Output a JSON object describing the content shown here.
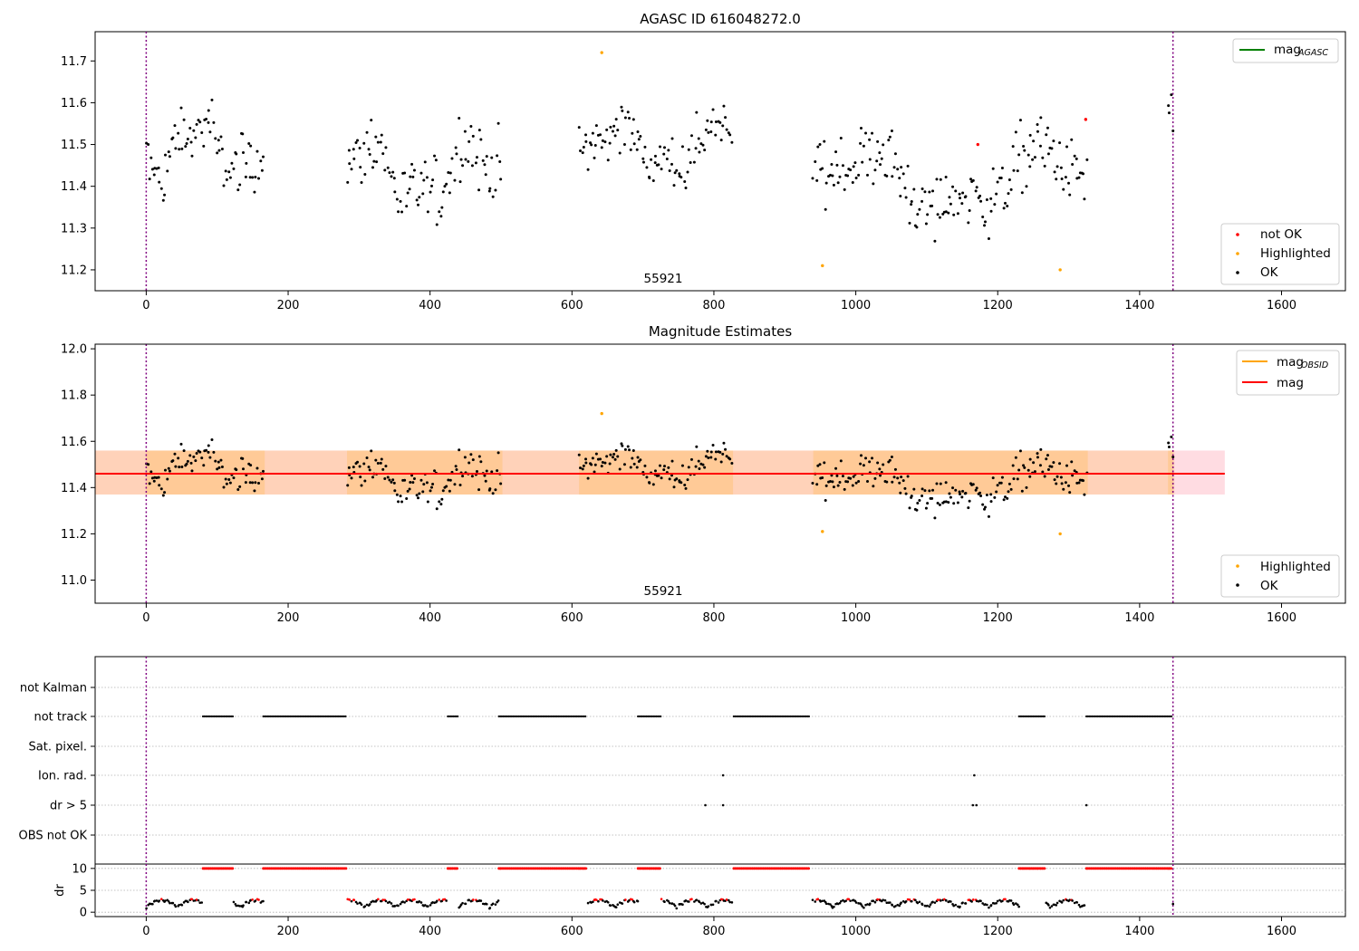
{
  "chart_data": [
    {
      "type": "scatter",
      "title": "AGASC ID 616048272.0",
      "xlim": [
        -72,
        1690
      ],
      "ylim": [
        11.15,
        11.77
      ],
      "xticks": [
        0,
        200,
        400,
        600,
        800,
        1000,
        1200,
        1400,
        1600
      ],
      "yticks": [
        11.2,
        11.3,
        11.4,
        11.5,
        11.6,
        11.7
      ],
      "obsid_label": "55921",
      "vlines": [
        0,
        1447
      ],
      "legend_upper": {
        "position": "top-right",
        "entries": [
          {
            "label": "mag",
            "sub": "AGASC",
            "color": "#008000"
          }
        ]
      },
      "legend_lower": {
        "position": "bottom-right",
        "entries": [
          {
            "label": "not OK",
            "color": "#ff0000"
          },
          {
            "label": "Highlighted",
            "color": "#ffa500"
          },
          {
            "label": "OK",
            "color": "#000000"
          }
        ]
      },
      "segments": [
        {
          "start": 0,
          "end": 165,
          "center": 11.49,
          "spread": 0.07
        },
        {
          "start": 283,
          "end": 500,
          "center": 11.43,
          "spread": 0.09
        },
        {
          "start": 610,
          "end": 825,
          "center": 11.49,
          "spread": 0.07
        },
        {
          "start": 940,
          "end": 1325,
          "center": 11.41,
          "spread": 0.09
        },
        {
          "start": 1440,
          "end": 1447,
          "center": 11.58,
          "spread": 0.04
        }
      ],
      "highlighted_points": [
        [
          642,
          11.72
        ],
        [
          953,
          11.21
        ],
        [
          1288,
          11.2
        ]
      ],
      "not_ok_points": [
        [
          1324,
          11.56
        ],
        [
          1172,
          11.5
        ]
      ]
    },
    {
      "type": "scatter",
      "title": "Magnitude Estimates",
      "xlim": [
        -72,
        1690
      ],
      "ylim": [
        10.9,
        12.02
      ],
      "xticks": [
        0,
        200,
        400,
        600,
        800,
        1000,
        1200,
        1400,
        1600
      ],
      "yticks": [
        11.0,
        11.2,
        11.4,
        11.6,
        11.8,
        12.0
      ],
      "obsid_label": "55921",
      "vlines": [
        0,
        1447
      ],
      "mag_line": 11.46,
      "mag_band": [
        11.37,
        11.56
      ],
      "band_x": [
        -72,
        1520
      ],
      "legend_upper": {
        "position": "top-right",
        "entries": [
          {
            "label": "mag",
            "sub": "OBSID",
            "color": "#ffa500"
          },
          {
            "label": "mag",
            "sub": "",
            "color": "#ff0000"
          }
        ]
      },
      "legend_lower": {
        "position": "bottom-right",
        "entries": [
          {
            "label": "Highlighted",
            "color": "#ffa500"
          },
          {
            "label": "OK",
            "color": "#000000"
          }
        ]
      }
    },
    {
      "type": "scatter",
      "title": "",
      "xlim": [
        -72,
        1690
      ],
      "flag_labels": [
        "not Kalman",
        "not track",
        "Sat. pixel.",
        "Ion. rad.",
        "dr > 5",
        "OBS not OK"
      ],
      "flag_segments": [
        {
          "flag": "not track",
          "ranges": [
            [
              80,
              122
            ],
            [
              165,
              282
            ],
            [
              425,
              440
            ],
            [
              497,
              620
            ],
            [
              693,
              725
            ],
            [
              828,
              935
            ],
            [
              1230,
              1267
            ],
            [
              1325,
              1445
            ]
          ]
        },
        {
          "flag": "Ion. rad.",
          "points": [
            813,
            1167
          ]
        },
        {
          "flag": "dr > 5",
          "points": [
            788,
            813,
            1165,
            1170,
            1325
          ]
        }
      ],
      "dr_ylabel": "dr",
      "dr_yticks": [
        0,
        5,
        10
      ],
      "dr_ylim": [
        -1,
        11
      ]
    }
  ]
}
